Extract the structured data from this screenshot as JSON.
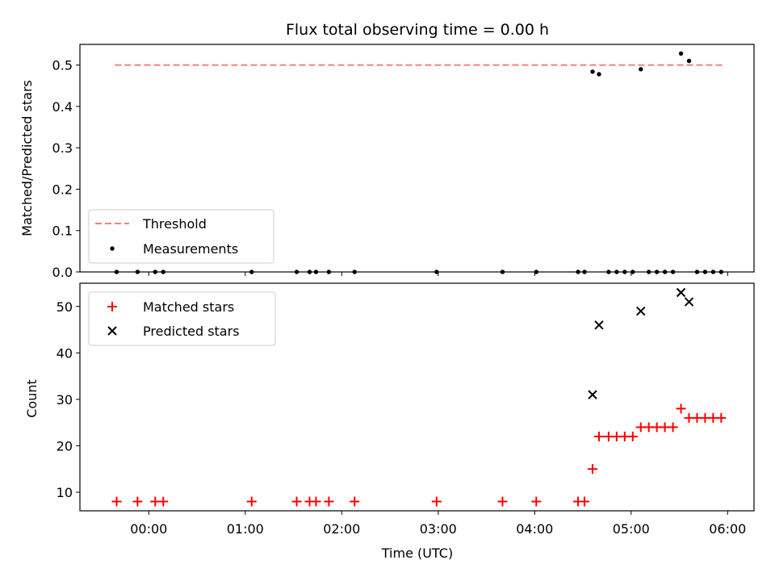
{
  "chart_data": [
    {
      "type": "scatter",
      "title": "Flux total observing time = 0.00 h",
      "xlabel": "",
      "ylabel": "Matched/Predicted stars",
      "ylim": [
        0,
        0.55
      ],
      "y_ticks": [
        "0.0",
        "0.1",
        "0.2",
        "0.3",
        "0.4",
        "0.5"
      ],
      "legend_position": "lower-left",
      "threshold": {
        "name": "Threshold",
        "value": 0.5,
        "x_start": "23:39",
        "x_end": "05:57",
        "color": "#f08080",
        "style": "dashed"
      },
      "series": [
        {
          "name": "Measurements",
          "color": "#000000",
          "points": [
            [
              "23:40",
              0
            ],
            [
              "23:53",
              0
            ],
            [
              "00:04",
              0
            ],
            [
              "00:09",
              0
            ],
            [
              "01:04",
              0
            ],
            [
              "01:32",
              0
            ],
            [
              "01:40",
              0
            ],
            [
              "01:44",
              0
            ],
            [
              "01:52",
              0
            ],
            [
              "02:08",
              0
            ],
            [
              "02:59",
              0
            ],
            [
              "03:40",
              0
            ],
            [
              "04:01",
              0
            ],
            [
              "04:27",
              0
            ],
            [
              "04:31",
              0
            ],
            [
              "04:36",
              0.484
            ],
            [
              "04:40",
              0.478
            ],
            [
              "04:46",
              0
            ],
            [
              "04:51",
              0
            ],
            [
              "04:56",
              0
            ],
            [
              "05:01",
              0
            ],
            [
              "05:06",
              0.49
            ],
            [
              "05:11",
              0
            ],
            [
              "05:16",
              0
            ],
            [
              "05:21",
              0
            ],
            [
              "05:26",
              0
            ],
            [
              "05:31",
              0.528
            ],
            [
              "05:36",
              0.51
            ],
            [
              "05:41",
              0
            ],
            [
              "05:46",
              0
            ],
            [
              "05:51",
              0
            ],
            [
              "05:56",
              0
            ]
          ]
        }
      ]
    },
    {
      "type": "scatter",
      "title": "",
      "xlabel": "Time (UTC)",
      "ylabel": "Count",
      "ylim": [
        6,
        55
      ],
      "y_ticks": [
        "10",
        "20",
        "30",
        "40",
        "50"
      ],
      "x_ticks": [
        "00:00",
        "01:00",
        "02:00",
        "03:00",
        "04:00",
        "05:00",
        "06:00"
      ],
      "legend_position": "upper-left",
      "series": [
        {
          "name": "Matched stars",
          "marker": "plus",
          "color": "#ff0000",
          "points": [
            [
              "23:40",
              8
            ],
            [
              "23:53",
              8
            ],
            [
              "00:04",
              8
            ],
            [
              "00:09",
              8
            ],
            [
              "01:04",
              8
            ],
            [
              "01:32",
              8
            ],
            [
              "01:40",
              8
            ],
            [
              "01:44",
              8
            ],
            [
              "01:52",
              8
            ],
            [
              "02:08",
              8
            ],
            [
              "02:59",
              8
            ],
            [
              "03:40",
              8
            ],
            [
              "04:01",
              8
            ],
            [
              "04:27",
              8
            ],
            [
              "04:31",
              8
            ],
            [
              "04:36",
              15
            ],
            [
              "04:40",
              22
            ],
            [
              "04:46",
              22
            ],
            [
              "04:51",
              22
            ],
            [
              "04:56",
              22
            ],
            [
              "05:01",
              22
            ],
            [
              "05:06",
              24
            ],
            [
              "05:11",
              24
            ],
            [
              "05:16",
              24
            ],
            [
              "05:21",
              24
            ],
            [
              "05:26",
              24
            ],
            [
              "05:31",
              28
            ],
            [
              "05:36",
              26
            ],
            [
              "05:41",
              26
            ],
            [
              "05:46",
              26
            ],
            [
              "05:51",
              26
            ],
            [
              "05:56",
              26
            ]
          ]
        },
        {
          "name": "Predicted stars",
          "marker": "x",
          "color": "#000000",
          "points": [
            [
              "04:36",
              31
            ],
            [
              "04:40",
              46
            ],
            [
              "05:06",
              49
            ],
            [
              "05:31",
              53
            ],
            [
              "05:36",
              51
            ]
          ]
        }
      ]
    }
  ]
}
